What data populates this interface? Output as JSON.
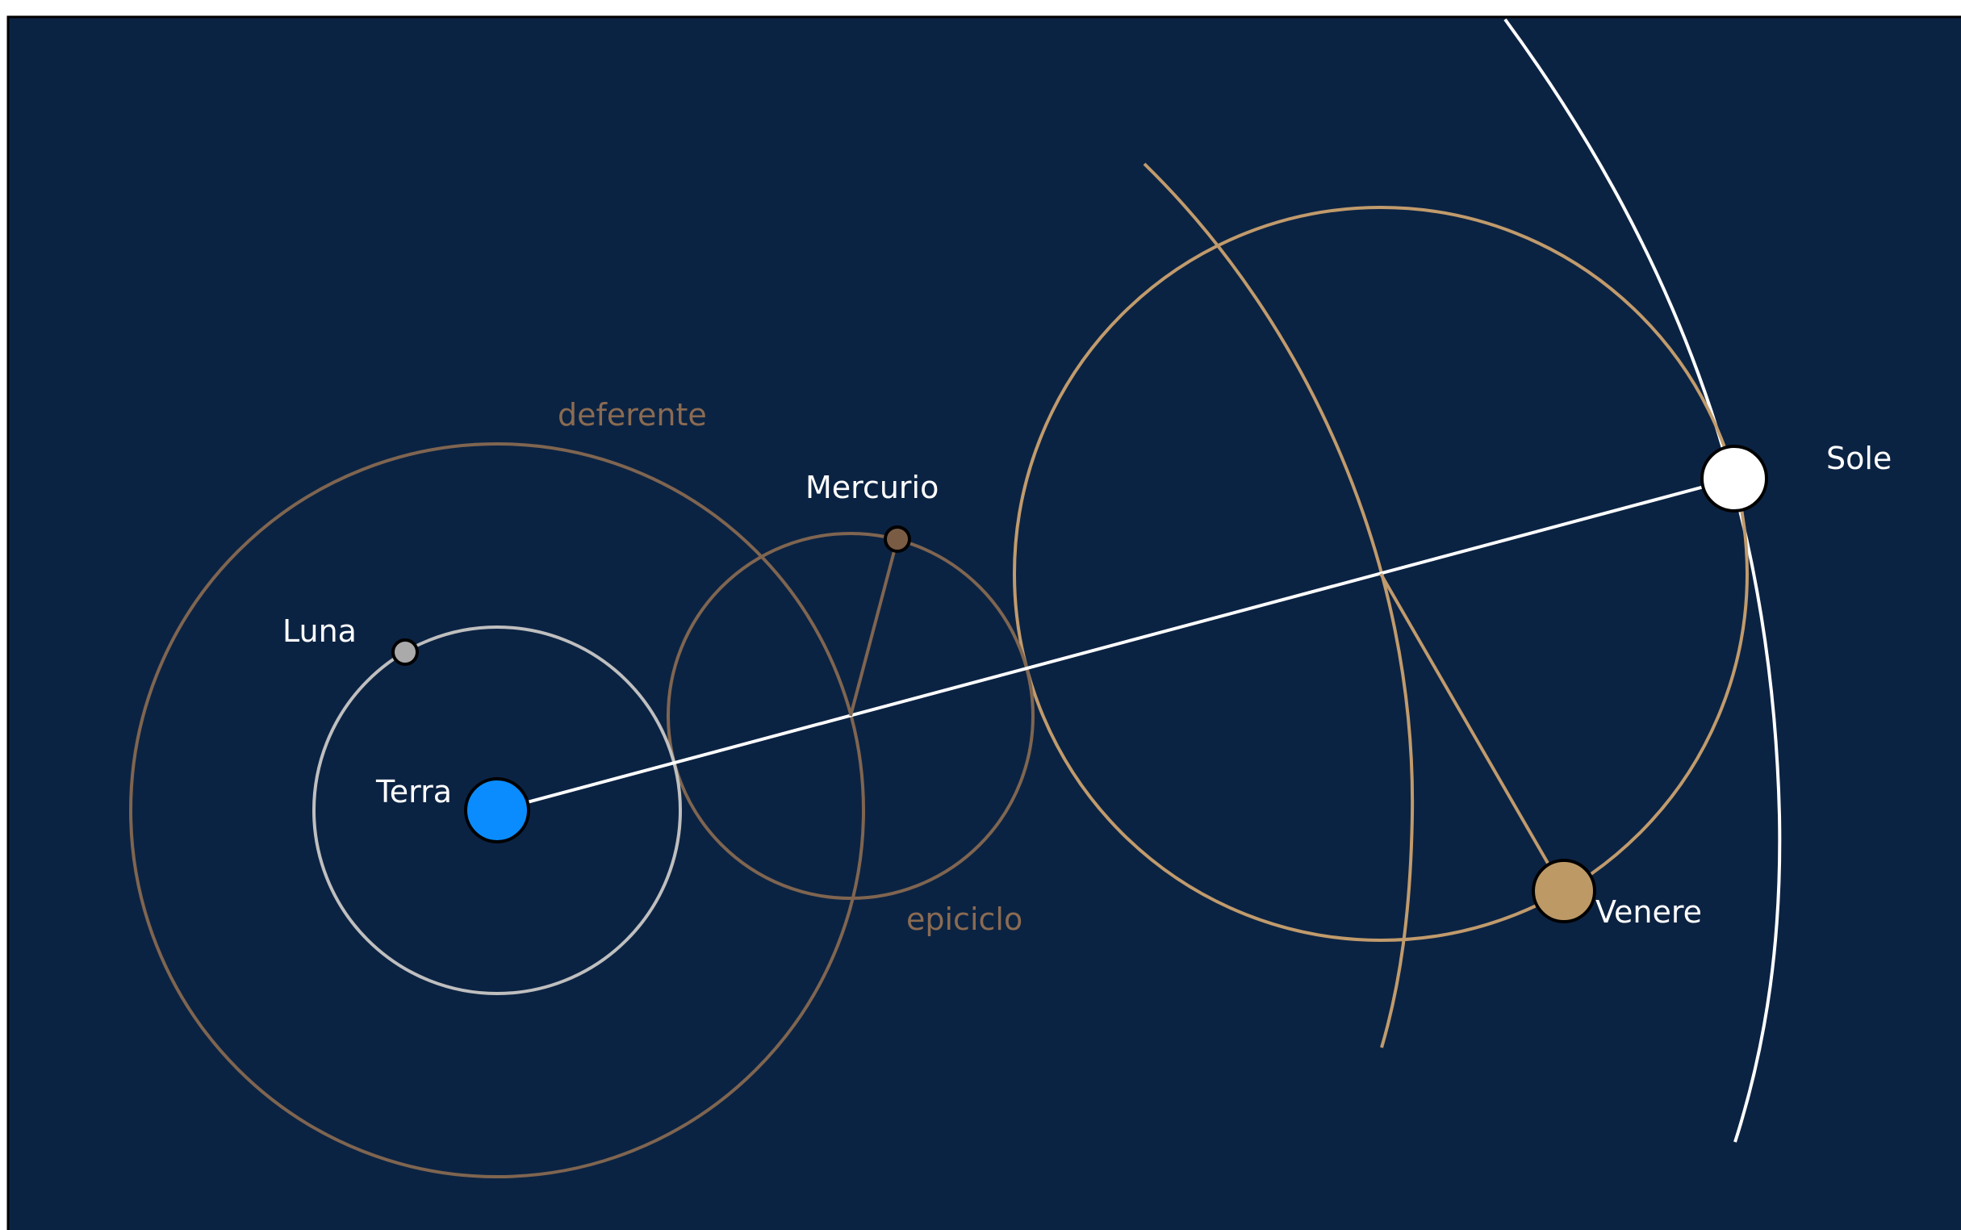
{
  "colors": {
    "background": "#0b2343",
    "frame": "#000000",
    "earth": "#0a8cff",
    "moon": "#aaaaaa",
    "moon_orbit": "#bfbfbf",
    "mercury": "#7a5c45",
    "mercury_curve": "#7f6550",
    "venus": "#bd9966",
    "venus_curve": "#c19b6c",
    "sun": "#ffffff",
    "sun_path": "#ffffff",
    "label": "#ffffff",
    "curve_label": "#8a6b52"
  },
  "bodies": {
    "earth": {
      "label": "Terra"
    },
    "moon": {
      "label": "Luna"
    },
    "mercury": {
      "label": "Mercurio"
    },
    "venus": {
      "label": "Venere"
    },
    "sun": {
      "label": "Sole"
    }
  },
  "annotations": {
    "deferent": "deferente",
    "epicycle": "epiciclo"
  }
}
